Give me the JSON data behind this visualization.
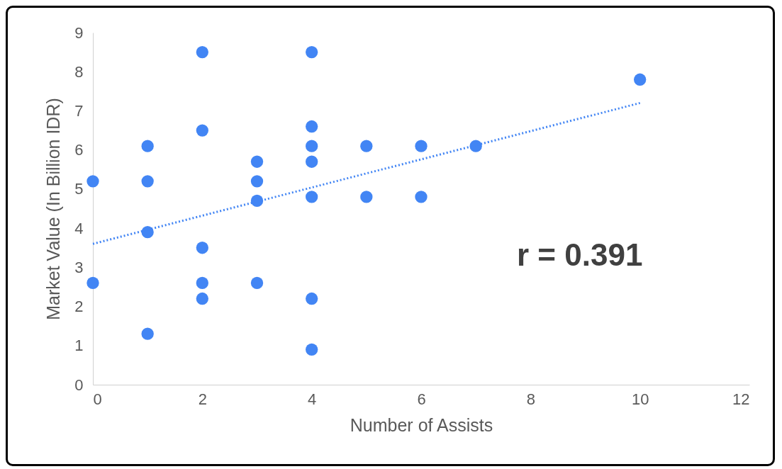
{
  "chart_data": {
    "type": "scatter",
    "xlabel": "Number of Assists",
    "ylabel": "Market Value (In Billion IDR)",
    "xlim": [
      0,
      12
    ],
    "xticks": [
      0,
      2,
      4,
      6,
      8,
      10,
      12
    ],
    "ylim": [
      0,
      9
    ],
    "yticks": [
      0,
      1,
      2,
      3,
      4,
      5,
      6,
      7,
      8,
      9
    ],
    "annotations": [
      "r = 0.391"
    ],
    "series": [
      {
        "marker": "circle",
        "color": "#4285f4",
        "x": [
          0,
          0,
          1,
          1,
          1,
          1,
          2,
          2,
          2,
          2,
          2,
          3,
          3,
          3,
          3,
          4,
          4,
          4,
          4,
          4,
          4,
          4,
          5,
          5,
          6,
          6,
          7,
          10
        ],
        "values": [
          5.2,
          2.6,
          6.1,
          5.2,
          3.9,
          1.3,
          8.5,
          6.5,
          3.5,
          2.6,
          2.2,
          5.7,
          5.2,
          4.7,
          2.6,
          8.5,
          6.6,
          6.1,
          5.7,
          4.8,
          2.2,
          0.9,
          6.1,
          4.8,
          6.1,
          4.8,
          6.1,
          7.8
        ]
      },
      {
        "type": "line",
        "color": "#4285f4",
        "line_style": "dotted",
        "x": [
          0,
          10
        ],
        "values": [
          3.6,
          7.2
        ]
      }
    ]
  }
}
